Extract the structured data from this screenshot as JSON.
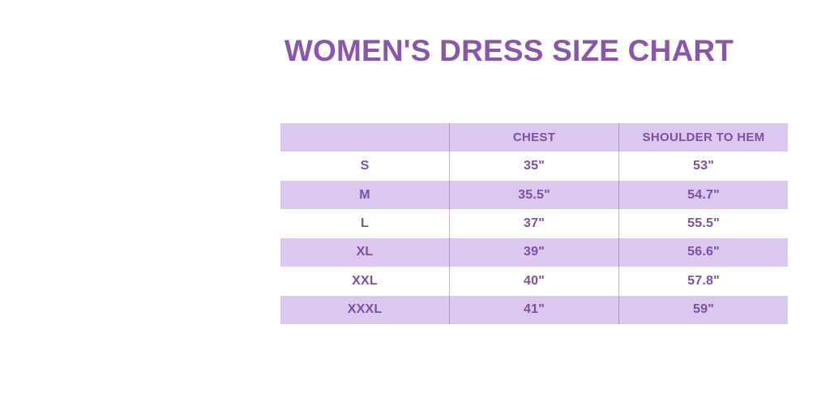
{
  "title": "WOMEN'S DRESS SIZE CHART",
  "colors": {
    "title_text": "#8a56ad",
    "table_text": "#7d4fa5",
    "row_fill": "#dcc7ee",
    "divider": "#a983c9",
    "background": "#ffffff"
  },
  "chart_data": {
    "type": "table",
    "title": "WOMEN'S DRESS SIZE CHART",
    "columns": [
      "",
      "CHEST",
      "SHOULDER TO HEM"
    ],
    "rows": [
      [
        "S",
        "35\"",
        "53\""
      ],
      [
        "M",
        "35.5\"",
        "54.7\""
      ],
      [
        "L",
        "37\"",
        "55.5\""
      ],
      [
        "XL",
        "39\"",
        "56.6\""
      ],
      [
        "XXL",
        "40\"",
        "57.8\""
      ],
      [
        "XXXL",
        "41\"",
        "59\""
      ]
    ],
    "layout": {
      "header_shaded": true,
      "row_shading": "alternating starting white after header",
      "columns_equal_width": true
    }
  }
}
